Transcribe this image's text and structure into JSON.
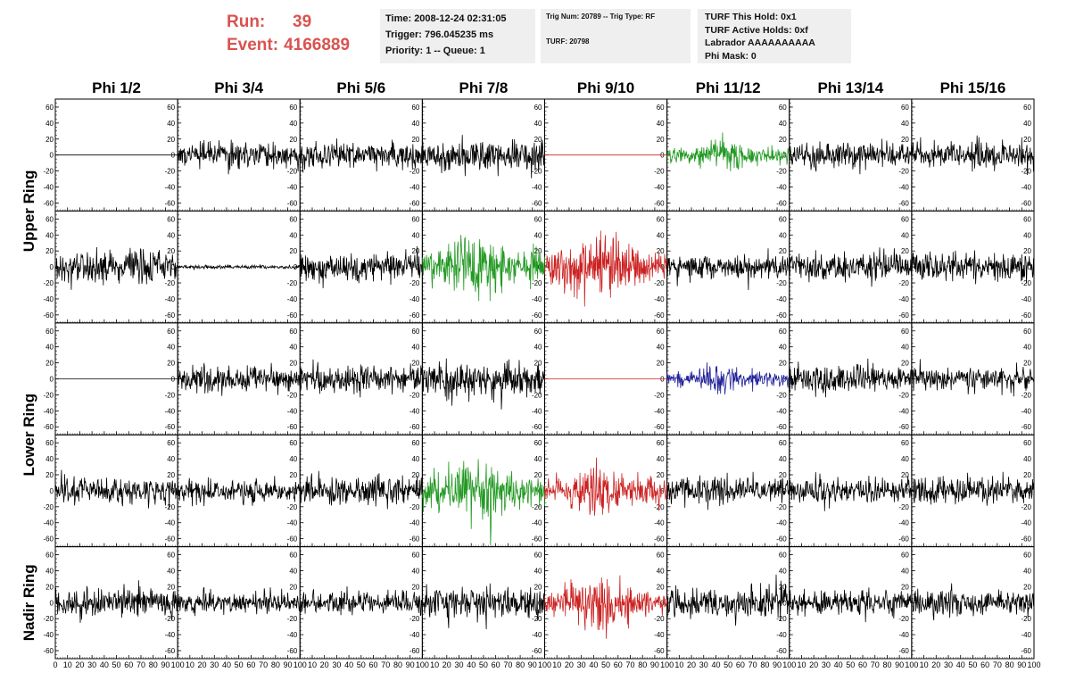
{
  "header": {
    "run_label": "Run:",
    "run_value": "39",
    "event_label": "Event:",
    "event_value": "4166889",
    "time": "Time: 2008-12-24 02:31:05",
    "trigger": "Trigger: 796.045235 ms",
    "priority": "Priority: 1 -- Queue: 1",
    "trig_num": "Trig Num: 20789 -- Trig Type: RF",
    "turf": "TURF: 20798",
    "turf_this_hold": "TURF This Hold: 0x1",
    "turf_active_holds": "TURF Active Holds: 0xf",
    "labrador": "Labrador AAAAAAAAAA",
    "phi_mask": "Phi Mask: 0"
  },
  "colors": {
    "black": "#000000",
    "green": "#229922",
    "red": "#cc2222",
    "blue": "#22229a",
    "header_red": "#d9534f"
  },
  "chart_data": {
    "type": "line",
    "columns": [
      "Phi 1/2",
      "Phi 3/4",
      "Phi 5/6",
      "Phi 7/8",
      "Phi 9/10",
      "Phi 11/12",
      "Phi 13/14",
      "Phi 15/16"
    ],
    "rows": [
      "Upper Ring",
      "Upper Ring",
      "Lower Ring",
      "Lower Ring",
      "Nadir Ring"
    ],
    "row_labels": [
      {
        "text": "Upper Ring",
        "rows": [
          0,
          1
        ]
      },
      {
        "text": "Lower Ring",
        "rows": [
          2,
          3
        ]
      },
      {
        "text": "Nadir Ring",
        "rows": [
          4
        ]
      }
    ],
    "xlim": [
      0,
      100
    ],
    "ylim": [
      -70,
      70
    ],
    "y_ticks": [
      -60,
      -40,
      -20,
      0,
      20,
      40,
      60
    ],
    "x_ticks": [
      0,
      10,
      20,
      30,
      40,
      50,
      60,
      70,
      80,
      90,
      100
    ],
    "x_tick_labels": [
      "0",
      "10",
      "20",
      "30",
      "40",
      "50",
      "60",
      "70",
      "80",
      "90",
      "100"
    ],
    "panels": [
      {
        "row": 0,
        "col": 0,
        "color": "black",
        "amplitude": 0,
        "envelope": "flat"
      },
      {
        "row": 0,
        "col": 1,
        "color": "black",
        "amplitude": 14,
        "envelope": "noise"
      },
      {
        "row": 0,
        "col": 2,
        "color": "black",
        "amplitude": 14,
        "envelope": "noise"
      },
      {
        "row": 0,
        "col": 3,
        "color": "black",
        "amplitude": 18,
        "envelope": "noise"
      },
      {
        "row": 0,
        "col": 4,
        "color": "red",
        "amplitude": 0,
        "envelope": "flat"
      },
      {
        "row": 0,
        "col": 5,
        "color": "green",
        "amplitude": 18,
        "envelope": "pulse"
      },
      {
        "row": 0,
        "col": 6,
        "color": "black",
        "amplitude": 14,
        "envelope": "noise"
      },
      {
        "row": 0,
        "col": 7,
        "color": "black",
        "amplitude": 15,
        "envelope": "noise"
      },
      {
        "row": 1,
        "col": 0,
        "color": "black",
        "amplitude": 18,
        "envelope": "noise"
      },
      {
        "row": 1,
        "col": 1,
        "color": "black",
        "amplitude": 2,
        "envelope": "noise"
      },
      {
        "row": 1,
        "col": 2,
        "color": "black",
        "amplitude": 16,
        "envelope": "noise"
      },
      {
        "row": 1,
        "col": 3,
        "color": "green",
        "amplitude": 40,
        "envelope": "pulse"
      },
      {
        "row": 1,
        "col": 4,
        "color": "red",
        "amplitude": 40,
        "envelope": "pulse"
      },
      {
        "row": 1,
        "col": 5,
        "color": "black",
        "amplitude": 14,
        "envelope": "noise"
      },
      {
        "row": 1,
        "col": 6,
        "color": "black",
        "amplitude": 15,
        "envelope": "noise"
      },
      {
        "row": 1,
        "col": 7,
        "color": "black",
        "amplitude": 16,
        "envelope": "noise"
      },
      {
        "row": 2,
        "col": 0,
        "color": "black",
        "amplitude": 0,
        "envelope": "flat"
      },
      {
        "row": 2,
        "col": 1,
        "color": "black",
        "amplitude": 14,
        "envelope": "noise"
      },
      {
        "row": 2,
        "col": 2,
        "color": "black",
        "amplitude": 16,
        "envelope": "noise"
      },
      {
        "row": 2,
        "col": 3,
        "color": "black",
        "amplitude": 20,
        "envelope": "noise"
      },
      {
        "row": 2,
        "col": 4,
        "color": "red",
        "amplitude": 0,
        "envelope": "flat"
      },
      {
        "row": 2,
        "col": 5,
        "color": "blue",
        "amplitude": 16,
        "envelope": "pulse"
      },
      {
        "row": 2,
        "col": 6,
        "color": "black",
        "amplitude": 15,
        "envelope": "noise"
      },
      {
        "row": 2,
        "col": 7,
        "color": "black",
        "amplitude": 12,
        "envelope": "noise"
      },
      {
        "row": 3,
        "col": 0,
        "color": "black",
        "amplitude": 15,
        "envelope": "noise"
      },
      {
        "row": 3,
        "col": 1,
        "color": "black",
        "amplitude": 13,
        "envelope": "noise"
      },
      {
        "row": 3,
        "col": 2,
        "color": "black",
        "amplitude": 16,
        "envelope": "noise"
      },
      {
        "row": 3,
        "col": 3,
        "color": "green",
        "amplitude": 40,
        "envelope": "pulse"
      },
      {
        "row": 3,
        "col": 4,
        "color": "red",
        "amplitude": 30,
        "envelope": "pulse"
      },
      {
        "row": 3,
        "col": 5,
        "color": "black",
        "amplitude": 15,
        "envelope": "noise"
      },
      {
        "row": 3,
        "col": 6,
        "color": "black",
        "amplitude": 14,
        "envelope": "noise"
      },
      {
        "row": 3,
        "col": 7,
        "color": "black",
        "amplitude": 15,
        "envelope": "noise"
      },
      {
        "row": 4,
        "col": 0,
        "color": "black",
        "amplitude": 17,
        "envelope": "noise"
      },
      {
        "row": 4,
        "col": 1,
        "color": "black",
        "amplitude": 12,
        "envelope": "noise"
      },
      {
        "row": 4,
        "col": 2,
        "color": "black",
        "amplitude": 13,
        "envelope": "noise"
      },
      {
        "row": 4,
        "col": 3,
        "color": "black",
        "amplitude": 18,
        "envelope": "noise"
      },
      {
        "row": 4,
        "col": 4,
        "color": "red",
        "amplitude": 35,
        "envelope": "pulse"
      },
      {
        "row": 4,
        "col": 5,
        "color": "black",
        "amplitude": 18,
        "envelope": "noise"
      },
      {
        "row": 4,
        "col": 6,
        "color": "black",
        "amplitude": 15,
        "envelope": "noise"
      },
      {
        "row": 4,
        "col": 7,
        "color": "black",
        "amplitude": 14,
        "envelope": "noise"
      }
    ]
  }
}
